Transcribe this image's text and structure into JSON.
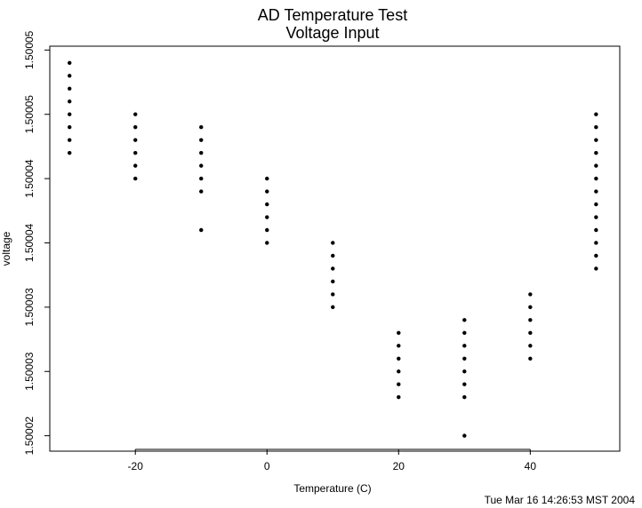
{
  "chart_data": {
    "type": "scatter",
    "title": "AD Temperature Test",
    "subtitle": "Voltage Input",
    "x_label": "Temperature (C)",
    "y_label": "voltage",
    "footer": "Tue Mar 16 14:26:53 MST 2004",
    "color": "#000000",
    "xlim": [
      -33,
      53.6
    ],
    "xticks": [
      -20,
      0,
      20,
      40
    ],
    "ylim": [
      1.5000188,
      1.5000503
    ],
    "yticks": [
      1.50002,
      {
        "value": 1.500025,
        "label": "1.50003"
      },
      1.50003,
      {
        "value": 1.500035,
        "label": "1.50004"
      },
      1.50004,
      {
        "value": 1.500045,
        "label": "1.50005"
      },
      1.50005
    ],
    "x": [
      -30,
      -30,
      -30,
      -30,
      -30,
      -30,
      -30,
      -30,
      -20,
      -20,
      -20,
      -20,
      -20,
      -20,
      -10,
      -10,
      -10,
      -10,
      -10,
      -10,
      -10,
      0,
      0,
      0,
      0,
      0,
      0,
      10,
      10,
      10,
      10,
      10,
      10,
      20,
      20,
      20,
      20,
      20,
      20,
      30,
      30,
      30,
      30,
      30,
      30,
      30,
      30,
      40,
      40,
      40,
      40,
      40,
      40,
      50,
      50,
      50,
      50,
      50,
      50,
      50,
      50,
      50,
      50,
      50,
      50,
      50
    ],
    "values": [
      1.500049,
      1.500048,
      1.500047,
      1.500046,
      1.500045,
      1.500044,
      1.500043,
      1.500042,
      1.500045,
      1.500044,
      1.500043,
      1.500042,
      1.500041,
      1.50004,
      1.500044,
      1.500043,
      1.500042,
      1.500041,
      1.50004,
      1.500039,
      1.500036,
      1.50004,
      1.500039,
      1.500038,
      1.500037,
      1.500036,
      1.500035,
      1.500035,
      1.500034,
      1.500033,
      1.500032,
      1.500031,
      1.50003,
      1.500028,
      1.500027,
      1.500026,
      1.500025,
      1.500024,
      1.500023,
      1.500029,
      1.500028,
      1.500027,
      1.500026,
      1.500025,
      1.500024,
      1.500023,
      1.50002,
      1.500031,
      1.50003,
      1.500029,
      1.500028,
      1.500027,
      1.500026,
      1.500045,
      1.500044,
      1.500043,
      1.500042,
      1.500041,
      1.50004,
      1.500039,
      1.500038,
      1.500037,
      1.500036,
      1.500035,
      1.500034,
      1.500033
    ]
  }
}
